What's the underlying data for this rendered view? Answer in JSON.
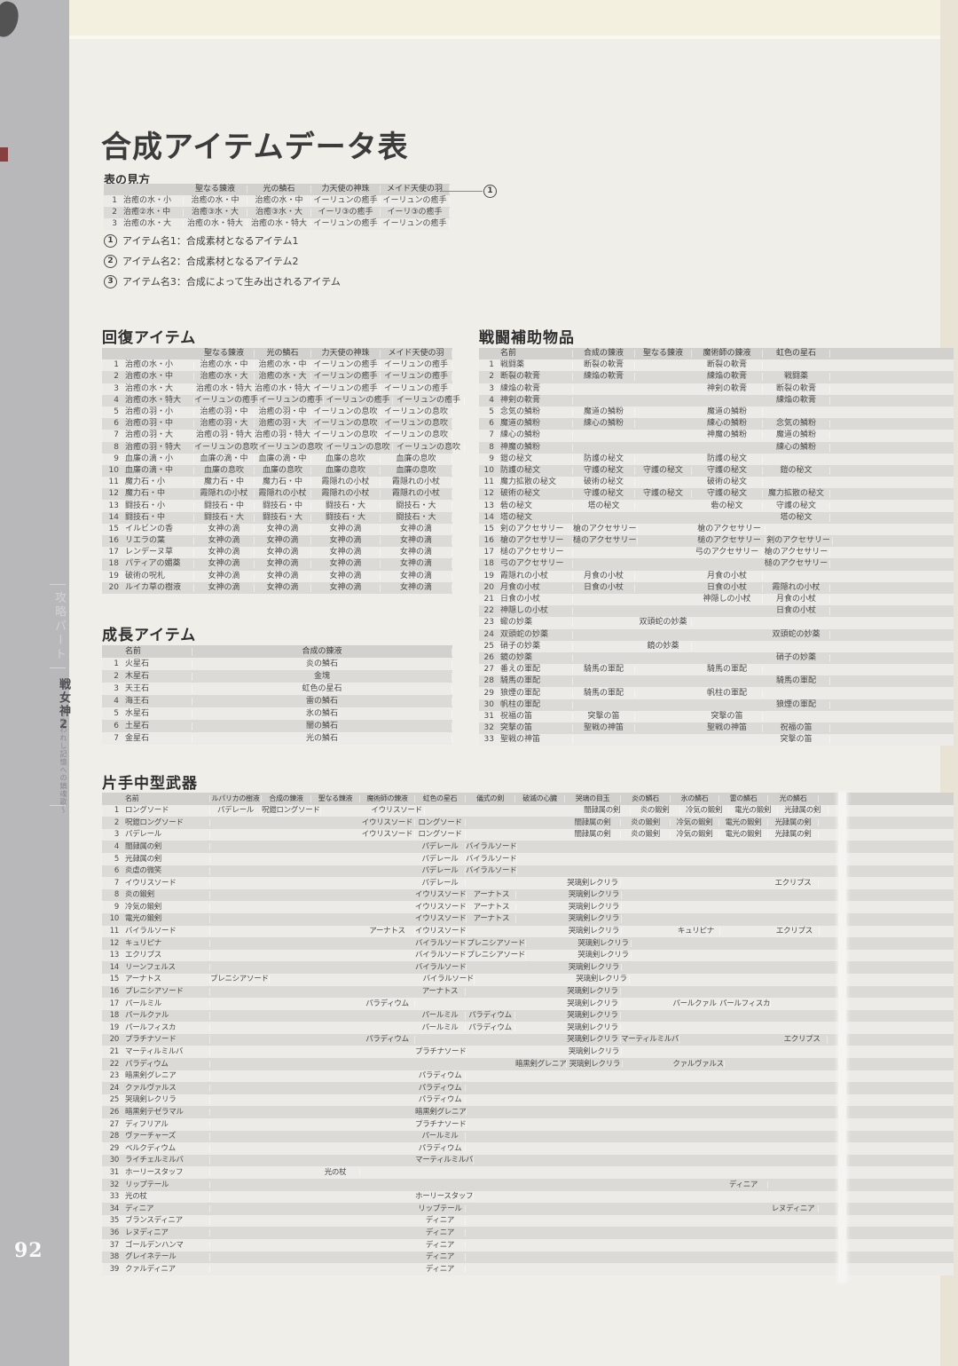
{
  "page": {
    "number": "92",
    "sidebar": {
      "section": "攻略パート",
      "game_title": "戦女神2",
      "game_subtitle": "〜失われし記憶への鎮魂歌〜"
    },
    "title": "合成アイテムデータ表",
    "legend": {
      "heading": "表の見方",
      "callout_num": "1",
      "notes": [
        {
          "num": "1",
          "text": "アイテム名1：合成素材となるアイテム1"
        },
        {
          "num": "2",
          "text": "アイテム名2：合成素材となるアイテム2"
        },
        {
          "num": "3",
          "text": "アイテム名3：合成によって生み出されるアイテム"
        }
      ]
    }
  },
  "legend_table": {
    "headers": [
      "",
      "",
      "聖なる錬液",
      "光の鱗石",
      "力天使の神珠",
      "メイド天使の羽"
    ],
    "rows": [
      [
        "1",
        "治癒の水・小",
        "治癒の水・中",
        "治癒の水・中",
        "イーリュンの癒手",
        "イーリュンの癒手"
      ],
      [
        "2",
        "治癒②水・中",
        "治癒③水・大",
        "治癒③水・大",
        "イーリ③の癒手",
        "イーリ③の癒手"
      ],
      [
        "3",
        "治癒の水・大",
        "治癒の水・特大",
        "治癒の水・特大",
        "イーリュンの癒手",
        "イーリュンの癒手"
      ]
    ]
  },
  "tables": {
    "recovery": {
      "title": "回復アイテム",
      "headers": [
        "",
        "",
        "聖なる錬液",
        "光の鱗石",
        "力天使の神珠",
        "メイド天使の羽"
      ],
      "rows": [
        [
          "1",
          "治癒の水・小",
          "治癒の水・中",
          "治癒の水・中",
          "イーリュンの癒手",
          "イーリュンの癒手"
        ],
        [
          "2",
          "治癒の水・中",
          "治癒の水・大",
          "治癒の水・大",
          "イーリュンの癒手",
          "イーリュンの癒手"
        ],
        [
          "3",
          "治癒の水・大",
          "治癒の水・特大",
          "治癒の水・特大",
          "イーリュンの癒手",
          "イーリュンの癒手"
        ],
        [
          "4",
          "治癒の水・特大",
          "イーリュンの癒手",
          "イーリュンの癒手",
          "イーリュンの癒手",
          "イーリュンの癒手"
        ],
        [
          "5",
          "治癒の羽・小",
          "治癒の羽・中",
          "治癒の羽・中",
          "イーリュンの息吹",
          "イーリュンの息吹"
        ],
        [
          "6",
          "治癒の羽・中",
          "治癒の羽・大",
          "治癒の羽・大",
          "イーリュンの息吹",
          "イーリュンの息吹"
        ],
        [
          "7",
          "治癒の羽・大",
          "治癒の羽・特大",
          "治癒の羽・特大",
          "イーリュンの息吹",
          "イーリュンの息吹"
        ],
        [
          "8",
          "治癒の羽・特大",
          "イーリュンの息吹",
          "イーリュンの息吹",
          "イーリュンの息吹",
          "イーリュンの息吹"
        ],
        [
          "9",
          "血廉の滴・小",
          "血廉の滴・中",
          "血廉の滴・中",
          "血廉の息吹",
          "血廉の息吹"
        ],
        [
          "10",
          "血廉の滴・中",
          "血廉の息吹",
          "血廉の息吹",
          "血廉の息吹",
          "血廉の息吹"
        ],
        [
          "11",
          "魔力石・小",
          "魔力石・中",
          "魔力石・中",
          "霞隠れの小杖",
          "霞隠れの小杖"
        ],
        [
          "12",
          "魔力石・中",
          "霞隠れの小杖",
          "霞隠れの小杖",
          "霞隠れの小杖",
          "霞隠れの小杖"
        ],
        [
          "13",
          "闘技石・小",
          "闘技石・中",
          "闘技石・中",
          "闘技石・大",
          "闘技石・大"
        ],
        [
          "14",
          "闘技石・中",
          "闘技石・大",
          "闘技石・大",
          "闘技石・大",
          "闘技石・大"
        ],
        [
          "15",
          "イルビンの香",
          "女神の滴",
          "女神の滴",
          "女神の滴",
          "女神の滴"
        ],
        [
          "16",
          "リエラの葉",
          "女神の滴",
          "女神の滴",
          "女神の滴",
          "女神の滴"
        ],
        [
          "17",
          "レンデーヌ草",
          "女神の滴",
          "女神の滴",
          "女神の滴",
          "女神の滴"
        ],
        [
          "18",
          "パティアの媚薬",
          "女神の滴",
          "女神の滴",
          "女神の滴",
          "女神の滴"
        ],
        [
          "19",
          "破術の呪札",
          "女神の滴",
          "女神の滴",
          "女神の滴",
          "女神の滴"
        ],
        [
          "20",
          "ルイカ草の樹液",
          "女神の滴",
          "女神の滴",
          "女神の滴",
          "女神の滴"
        ]
      ]
    },
    "battle_support": {
      "title": "戦闘補助物品",
      "headers": [
        "",
        "名前",
        "合成の錬液",
        "聖なる錬液",
        "魔術師の錬液",
        "虹色の星石"
      ],
      "rows": [
        [
          "1",
          "戦闘薬",
          "断裂の軟膏",
          "",
          "断裂の軟膏",
          ""
        ],
        [
          "2",
          "断裂の軟膏",
          "練焔の軟膏",
          "",
          "練焔の軟膏",
          "戦闘薬"
        ],
        [
          "3",
          "練焔の軟膏",
          "",
          "",
          "神剣の軟膏",
          "断裂の軟膏"
        ],
        [
          "4",
          "神剣の軟膏",
          "",
          "",
          "",
          "練焔の軟膏"
        ],
        [
          "5",
          "念気の鱗粉",
          "魔道の鱗粉",
          "",
          "魔道の鱗粉",
          ""
        ],
        [
          "6",
          "魔道の鱗粉",
          "練心の鱗粉",
          "",
          "練心の鱗粉",
          "念気の鱗粉"
        ],
        [
          "7",
          "練心の鱗粉",
          "",
          "",
          "神魔の鱗粉",
          "魔道の鱗粉"
        ],
        [
          "8",
          "神魔の鱗粉",
          "",
          "",
          "",
          "練心の鱗粉"
        ],
        [
          "9",
          "鎧の秘文",
          "防護の秘文",
          "",
          "防護の秘文",
          ""
        ],
        [
          "10",
          "防護の秘文",
          "守護の秘文",
          "守護の秘文",
          "守護の秘文",
          "鎧の秘文"
        ],
        [
          "11",
          "魔力拡散の秘文",
          "破術の秘文",
          "",
          "破術の秘文",
          ""
        ],
        [
          "12",
          "破術の秘文",
          "守護の秘文",
          "守護の秘文",
          "守護の秘文",
          "魔力拡散の秘文"
        ],
        [
          "13",
          "砦の秘文",
          "塔の秘文",
          "",
          "砦の秘文",
          "守護の秘文"
        ],
        [
          "14",
          "塔の秘文",
          "",
          "",
          "",
          "塔の秘文"
        ],
        [
          "15",
          "剣のアクセサリー",
          "槍のアクセサリー",
          "",
          "槍のアクセサリー",
          ""
        ],
        [
          "16",
          "槍のアクセサリー",
          "槌のアクセサリー",
          "",
          "槌のアクセサリー",
          "剣のアクセサリー"
        ],
        [
          "17",
          "槌のアクセサリー",
          "",
          "",
          "弓のアクセサリー",
          "槍のアクセサリー"
        ],
        [
          "18",
          "弓のアクセサリー",
          "",
          "",
          "",
          "槌のアクセサリー"
        ],
        [
          "19",
          "霞隠れの小杖",
          "月食の小杖",
          "",
          "月食の小杖",
          ""
        ],
        [
          "20",
          "月食の小杖",
          "日食の小杖",
          "",
          "日食の小杖",
          "霞隠れの小杖"
        ],
        [
          "21",
          "日食の小杖",
          "",
          "",
          "神隠しの小杖",
          "月食の小杖"
        ],
        [
          "22",
          "神隠しの小杖",
          "",
          "",
          "",
          "日食の小杖"
        ],
        [
          "23",
          "蠍の妙薬",
          "",
          "双頭蛇の妙薬",
          "",
          ""
        ],
        [
          "24",
          "双頭蛇の妙薬",
          "",
          "",
          "",
          "双頭蛇の妙薬"
        ],
        [
          "25",
          "硝子の妙薬",
          "",
          "鏡の妙薬",
          "",
          ""
        ],
        [
          "26",
          "鏡の妙薬",
          "",
          "",
          "",
          "硝子の妙薬"
        ],
        [
          "27",
          "番えの軍配",
          "騎馬の軍配",
          "",
          "騎馬の軍配",
          ""
        ],
        [
          "28",
          "騎馬の軍配",
          "",
          "",
          "",
          "騎馬の軍配"
        ],
        [
          "29",
          "狼煙の軍配",
          "騎馬の軍配",
          "",
          "帆柱の軍配",
          ""
        ],
        [
          "30",
          "帆柱の軍配",
          "",
          "",
          "",
          "狼煙の軍配"
        ],
        [
          "31",
          "祝福の笛",
          "突撃の笛",
          "",
          "突撃の笛",
          ""
        ],
        [
          "32",
          "突撃の笛",
          "聖戦の神笛",
          "",
          "聖戦の神笛",
          "祝福の笛"
        ],
        [
          "33",
          "聖戦の神笛",
          "",
          "",
          "",
          "突撃の笛"
        ]
      ]
    },
    "growth": {
      "title": "成長アイテム",
      "headers": [
        "",
        "名前",
        "合成の錬液"
      ],
      "rows": [
        [
          "1",
          "火星石",
          "炎の鱗石"
        ],
        [
          "2",
          "木星石",
          "金塊"
        ],
        [
          "3",
          "天王石",
          "虹色の星石"
        ],
        [
          "4",
          "海王石",
          "雷の鱗石"
        ],
        [
          "5",
          "水星石",
          "氷の鱗石"
        ],
        [
          "6",
          "土星石",
          "闇の鱗石"
        ],
        [
          "7",
          "金星石",
          "光の鱗石"
        ]
      ]
    },
    "weapons": {
      "title": "片手中型武器",
      "headers": [
        "",
        "名前",
        "ルパリカの樹液",
        "合成の錬液",
        "聖なる錬液",
        "魔術師の錬液",
        "虹色の星石",
        "儀式の剣",
        "破滅の心臓",
        "哭璃の目玉",
        "炎の鱗石",
        "氷の鱗石",
        "雷の鱗石",
        "光の鱗石"
      ],
      "rows": [
        [
          "1",
          "ロングソード",
          "パデレール",
          "呪鎧ロングソード",
          "",
          "イウリスソード",
          "",
          "",
          "",
          "闇隷属の剣",
          "炎の鍛剣",
          "冷気の鍛剣",
          "電光の鍛剣",
          "光隷属の剣"
        ],
        [
          "2",
          "呪鎧ロングソード",
          "",
          "",
          "",
          "イウリスソード",
          "ロングソード",
          "",
          "",
          "闇隷属の剣",
          "炎の鍛剣",
          "冷気の鍛剣",
          "電光の鍛剣",
          "光隷属の剣"
        ],
        [
          "3",
          "パデレール",
          "",
          "",
          "",
          "イウリスソード",
          "ロングソード",
          "",
          "",
          "闇隷属の剣",
          "炎の鍛剣",
          "冷気の鍛剣",
          "電光の鍛剣",
          "光隷属の剣"
        ],
        [
          "4",
          "闇隷属の剣",
          "",
          "",
          "",
          "",
          "パデレール",
          "バイラルソード",
          "",
          "",
          "",
          "",
          "",
          ""
        ],
        [
          "5",
          "光隷属の剣",
          "",
          "",
          "",
          "",
          "パデレール",
          "バイラルソード",
          "",
          "",
          "",
          "",
          "",
          ""
        ],
        [
          "6",
          "炎虐の微笑",
          "",
          "",
          "",
          "",
          "パデレール",
          "バイラルソード",
          "",
          "",
          "",
          "",
          "",
          ""
        ],
        [
          "7",
          "イウリスソード",
          "",
          "",
          "",
          "",
          "パデレール",
          "",
          "",
          "哭璃剣レクリラ",
          "",
          "",
          "",
          "エクリプス"
        ],
        [
          "8",
          "炎の鍛剣",
          "",
          "",
          "",
          "",
          "イウリスソード",
          "アーナトス",
          "",
          "哭璃剣レクリラ",
          "",
          "",
          "",
          ""
        ],
        [
          "9",
          "冷気の鍛剣",
          "",
          "",
          "",
          "",
          "イウリスソード",
          "アーナトス",
          "",
          "哭璃剣レクリラ",
          "",
          "",
          "",
          ""
        ],
        [
          "10",
          "電光の鍛剣",
          "",
          "",
          "",
          "",
          "イウリスソード",
          "アーナトス",
          "",
          "哭璃剣レクリラ",
          "",
          "",
          "",
          ""
        ],
        [
          "11",
          "バイラルソード",
          "",
          "",
          "",
          "アーナトス",
          "イウリスソード",
          "",
          "",
          "哭璃剣レクリラ",
          "",
          "キュリピナ",
          "",
          "エクリプス"
        ],
        [
          "12",
          "キュリピナ",
          "",
          "",
          "",
          "",
          "バイラルソード",
          "プレニシアソード",
          "",
          "哭璃剣レクリラ",
          "",
          "",
          "",
          ""
        ],
        [
          "13",
          "エクリプス",
          "",
          "",
          "",
          "",
          "バイラルソード",
          "プレニシアソード",
          "",
          "哭璃剣レクリラ",
          "",
          "",
          "",
          ""
        ],
        [
          "14",
          "リーンフェルス",
          "",
          "",
          "",
          "",
          "バイラルソード",
          "",
          "",
          "哭璃剣レクリラ",
          "",
          "",
          "",
          ""
        ],
        [
          "15",
          "アーナトス",
          "プレニシアソード",
          "",
          "",
          "",
          "バイラルソード",
          "",
          "",
          "哭璃剣レクリラ",
          "",
          "",
          "",
          ""
        ],
        [
          "16",
          "プレニシアソード",
          "",
          "",
          "",
          "",
          "アーナトス",
          "",
          "",
          "哭璃剣レクリラ",
          "",
          "",
          "",
          ""
        ],
        [
          "17",
          "パールミル",
          "",
          "",
          "",
          "パラディウム",
          "",
          "",
          "",
          "哭璃剣レクリラ",
          "",
          "パールクァル",
          "パールフィスカ",
          ""
        ],
        [
          "18",
          "パールクァル",
          "",
          "",
          "",
          "",
          "パールミル",
          "パラディウム",
          "",
          "哭璃剣レクリラ",
          "",
          "",
          "",
          ""
        ],
        [
          "19",
          "パールフィスカ",
          "",
          "",
          "",
          "",
          "パールミル",
          "パラディウム",
          "",
          "哭璃剣レクリラ",
          "",
          "",
          "",
          ""
        ],
        [
          "20",
          "プラチナソード",
          "",
          "",
          "",
          "パラディウム",
          "",
          "",
          "",
          "哭璃剣レクリラ",
          "マーティルミルバ",
          "",
          "",
          "エクリプス"
        ],
        [
          "21",
          "マーティルミルバ",
          "",
          "",
          "",
          "",
          "プラチナソード",
          "",
          "",
          "哭璃剣レクリラ",
          "",
          "",
          "",
          ""
        ],
        [
          "22",
          "パラディウム",
          "",
          "",
          "",
          "",
          "",
          "",
          "暗黒剣グレニア",
          "哭璃剣レクリラ",
          "",
          "クァルヴァルス",
          "",
          ""
        ],
        [
          "23",
          "暗黒剣グレニア",
          "",
          "",
          "",
          "",
          "パラディウム",
          "",
          "",
          "",
          "",
          "",
          "",
          ""
        ],
        [
          "24",
          "クァルヴァルス",
          "",
          "",
          "",
          "",
          "パラディウム",
          "",
          "",
          "",
          "",
          "",
          "",
          ""
        ],
        [
          "25",
          "哭璃剣レクリラ",
          "",
          "",
          "",
          "",
          "パラディウム",
          "",
          "",
          "",
          "",
          "",
          "",
          ""
        ],
        [
          "26",
          "暗黒剣テゼラマル",
          "",
          "",
          "",
          "",
          "暗黒剣グレニア",
          "",
          "",
          "",
          "",
          "",
          "",
          ""
        ],
        [
          "27",
          "ディフリアル",
          "",
          "",
          "",
          "",
          "プラチナソード",
          "",
          "",
          "",
          "",
          "",
          "",
          ""
        ],
        [
          "28",
          "ヴァーチャーズ",
          "",
          "",
          "",
          "",
          "パールミル",
          "",
          "",
          "",
          "",
          "",
          "",
          ""
        ],
        [
          "29",
          "ベルクディウム",
          "",
          "",
          "",
          "",
          "パラディウム",
          "",
          "",
          "",
          "",
          "",
          "",
          ""
        ],
        [
          "30",
          "ライチェルミルバ",
          "",
          "",
          "",
          "",
          "マーティルミルバ",
          "",
          "",
          "",
          "",
          "",
          "",
          ""
        ],
        [
          "31",
          "ホーリースタッフ",
          "",
          "",
          "光の杖",
          "",
          "",
          "",
          "",
          "",
          "",
          "",
          "",
          ""
        ],
        [
          "32",
          "リップテール",
          "",
          "",
          "",
          "",
          "",
          "",
          "",
          "",
          "",
          "",
          "ディニア",
          ""
        ],
        [
          "33",
          "光の杖",
          "",
          "",
          "",
          "",
          "ホーリースタッフ",
          "",
          "",
          "",
          "",
          "",
          "",
          ""
        ],
        [
          "34",
          "ディニア",
          "",
          "",
          "",
          "",
          "リップテール",
          "",
          "",
          "",
          "",
          "",
          "",
          "レヌディニア"
        ],
        [
          "35",
          "ブランスディニア",
          "",
          "",
          "",
          "",
          "ディニア",
          "",
          "",
          "",
          "",
          "",
          "",
          ""
        ],
        [
          "36",
          "レヌディニア",
          "",
          "",
          "",
          "",
          "ディニア",
          "",
          "",
          "",
          "",
          "",
          "",
          ""
        ],
        [
          "37",
          "ゴールデンハンマ",
          "",
          "",
          "",
          "",
          "ディニア",
          "",
          "",
          "",
          "",
          "",
          "",
          ""
        ],
        [
          "38",
          "グレイネテール",
          "",
          "",
          "",
          "",
          "ディニア",
          "",
          "",
          "",
          "",
          "",
          "",
          ""
        ],
        [
          "39",
          "クァルディニア",
          "",
          "",
          "",
          "",
          "ディニア",
          "",
          "",
          "",
          "",
          "",
          "",
          ""
        ]
      ]
    }
  }
}
